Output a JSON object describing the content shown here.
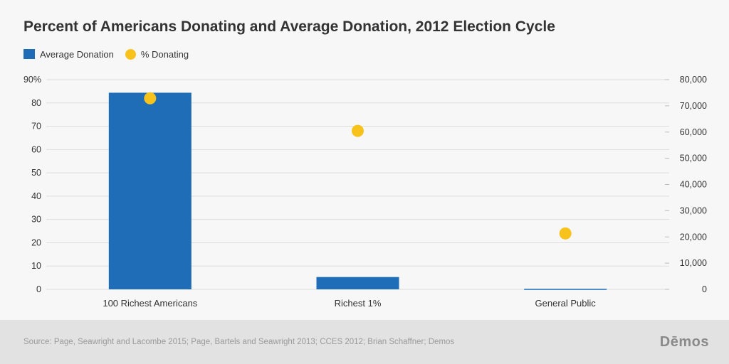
{
  "title": "Percent of Americans Donating and Average Donation, 2012 Election Cycle",
  "legend": {
    "bar_label": "Average Donation",
    "dot_label": "% Donating"
  },
  "colors": {
    "bar": "#1f6db6",
    "dot": "#f7c21b",
    "grid": "#dddddd",
    "text": "#333333"
  },
  "chart_data": {
    "type": "bar",
    "title": "Percent of Americans Donating and Average Donation, 2012 Election Cycle",
    "categories": [
      "100 Richest Americans",
      "Richest 1%",
      "General Public"
    ],
    "series": [
      {
        "name": "Average Donation",
        "type": "bar",
        "axis": "right",
        "values": [
          75000,
          4700,
          200
        ]
      },
      {
        "name": "% Donating",
        "type": "scatter",
        "axis": "left",
        "values": [
          82,
          68,
          24
        ]
      }
    ],
    "y_left": {
      "ylim": [
        0,
        90
      ],
      "ticks": [
        0,
        10,
        20,
        30,
        40,
        50,
        60,
        70,
        80,
        90
      ],
      "tick_labels": [
        "0",
        "10",
        "20",
        "30",
        "40",
        "50",
        "60",
        "70",
        "80",
        "90%"
      ]
    },
    "y_right": {
      "ylim": [
        0,
        80000
      ],
      "ticks": [
        0,
        10000,
        20000,
        30000,
        40000,
        50000,
        60000,
        70000,
        80000
      ],
      "tick_labels": [
        "0",
        "10,000",
        "20,000",
        "30,000",
        "40,000",
        "50,000",
        "60,000",
        "70,000",
        "80,000"
      ]
    },
    "grid": true,
    "legend_position": "top-left"
  },
  "footer": {
    "source": "Source: Page, Seawright and Lacombe 2015; Page, Bartels and Seawright 2013; CCES 2012; Brian Schaffner; Demos",
    "brand": "Dēmos"
  }
}
